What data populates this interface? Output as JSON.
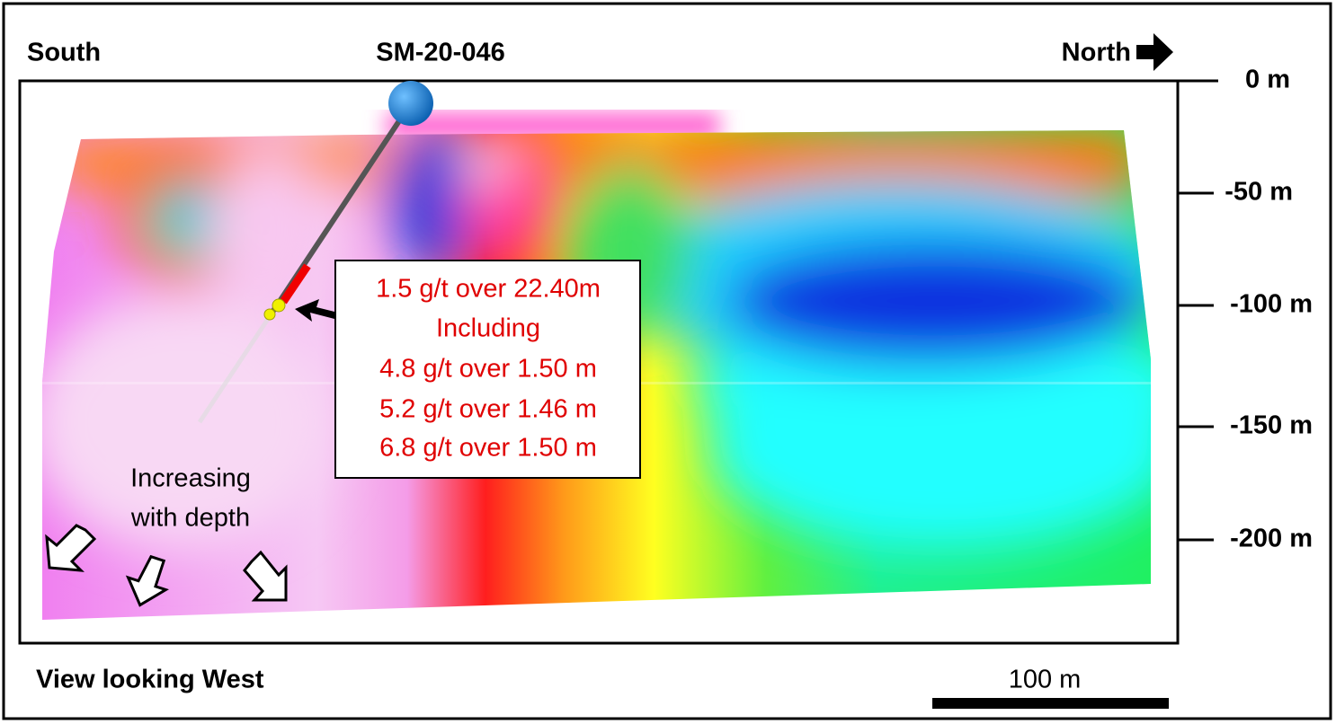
{
  "labels": {
    "south": "South",
    "hole": "SM-20-046",
    "north": "North",
    "view": "View looking West",
    "scale": "100 m"
  },
  "note": [
    "Increasing",
    "with depth"
  ],
  "depth_labels": [
    "0 m",
    "-50 m",
    "-100 m",
    "-150 m",
    "-200 m"
  ],
  "intercepts": [
    "1.5 g/t over 22.40m",
    "Including",
    "4.8 g/t over 1.50 m",
    "5.2 g/t over 1.46 m",
    "6.8 g/t over 1.50 m"
  ]
}
